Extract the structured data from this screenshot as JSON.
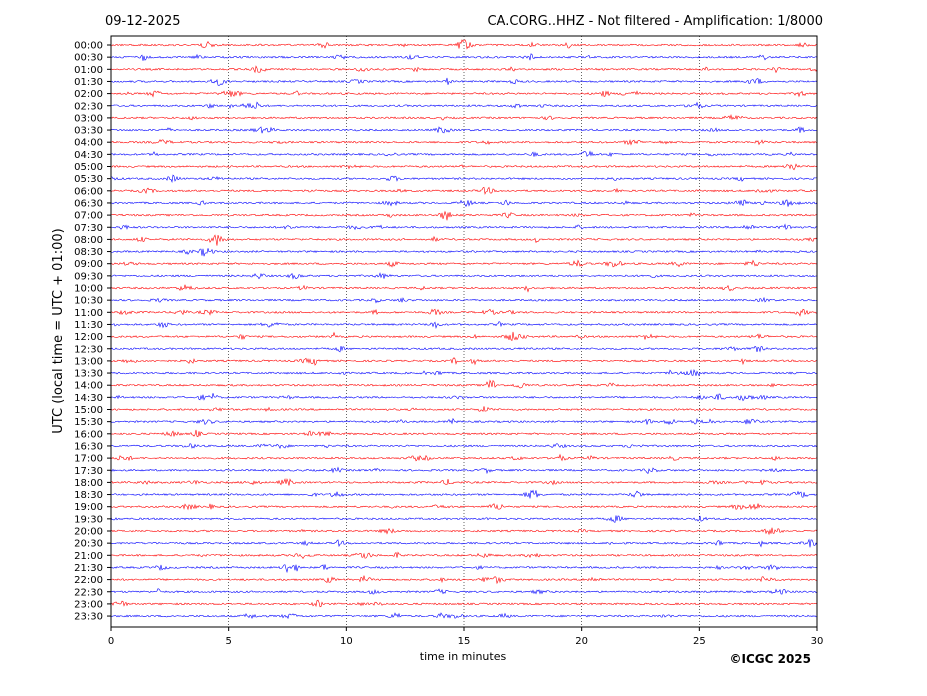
{
  "header": {
    "date": "09-12-2025",
    "title": "CA.CORG..HHZ - Not filtered - Amplification: 1/8000"
  },
  "footer": {
    "copyright": "©ICGC 2025"
  },
  "chart_data": {
    "type": "line",
    "title": "CA.CORG..HHZ - Not filtered - Amplification: 1/8000",
    "xlabel": "time in minutes",
    "ylabel": "UTC (local time = UTC + 01:00)",
    "xlim": [
      0,
      30
    ],
    "x_ticks": [
      0,
      5,
      10,
      15,
      20,
      25,
      30
    ],
    "grid": "vertical dotted lines at x ticks",
    "trace_colors": [
      "#ff0000",
      "#0000ff"
    ],
    "trace_color_pattern": "alternating red (even rows) and blue (odd rows)",
    "row_labels": [
      "00:00",
      "00:30",
      "01:00",
      "01:30",
      "02:00",
      "02:30",
      "03:00",
      "03:30",
      "04:00",
      "04:30",
      "05:00",
      "05:30",
      "06:00",
      "06:30",
      "07:00",
      "07:30",
      "08:00",
      "08:30",
      "09:00",
      "09:30",
      "10:00",
      "10:30",
      "11:00",
      "11:30",
      "12:00",
      "12:30",
      "13:00",
      "13:30",
      "14:00",
      "14:30",
      "15:00",
      "15:30",
      "16:00",
      "16:30",
      "17:00",
      "17:30",
      "18:00",
      "18:30",
      "19:00",
      "19:30",
      "20:00",
      "20:30",
      "21:00",
      "21:30",
      "22:00",
      "22:30",
      "23:00",
      "23:30"
    ]
  }
}
